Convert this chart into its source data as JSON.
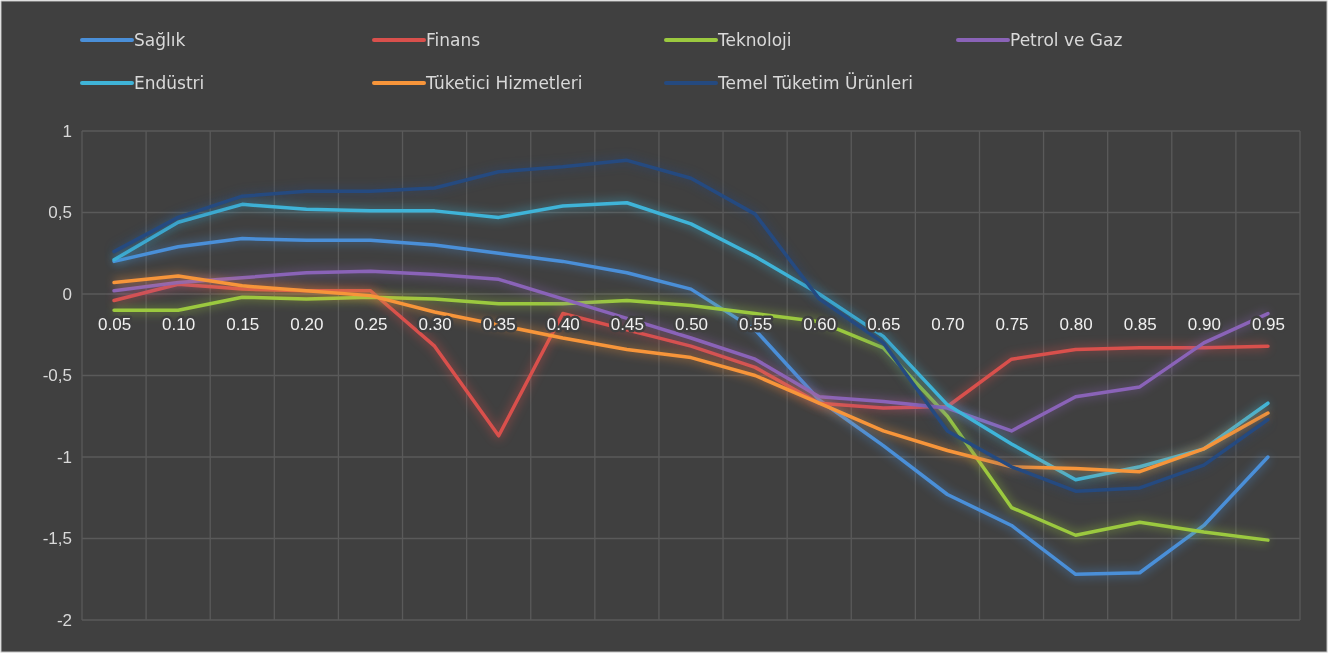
{
  "chart_data": {
    "type": "line",
    "categories": [
      "0.05",
      "0.10",
      "0.15",
      "0.20",
      "0.25",
      "0.30",
      "0.35",
      "0.40",
      "0.45",
      "0.50",
      "0.55",
      "0.60",
      "0.65",
      "0.70",
      "0.75",
      "0.80",
      "0.85",
      "0.90",
      "0.95"
    ],
    "series": [
      {
        "name": "Sağlık",
        "color": "#4a8fd8",
        "values": [
          0.2,
          0.29,
          0.34,
          0.33,
          0.33,
          0.3,
          0.25,
          0.2,
          0.13,
          0.03,
          -0.22,
          -0.65,
          -0.93,
          -1.23,
          -1.42,
          -1.72,
          -1.71,
          -1.42,
          -1.0
        ]
      },
      {
        "name": "Finans",
        "color": "#d9504c",
        "values": [
          -0.04,
          0.06,
          0.03,
          0.02,
          0.02,
          -0.32,
          -0.87,
          -0.12,
          -0.22,
          -0.32,
          -0.45,
          -0.67,
          -0.7,
          -0.69,
          -0.4,
          -0.34,
          -0.33,
          -0.33,
          -0.32
        ]
      },
      {
        "name": "Teknoloji",
        "color": "#9bc93f",
        "values": [
          -0.1,
          -0.1,
          -0.02,
          -0.03,
          -0.02,
          -0.03,
          -0.06,
          -0.06,
          -0.04,
          -0.07,
          -0.12,
          -0.17,
          -0.33,
          -0.75,
          -1.31,
          -1.48,
          -1.4,
          -1.46,
          -1.51
        ]
      },
      {
        "name": "Petrol ve Gaz",
        "color": "#8a63b8",
        "values": [
          0.02,
          0.07,
          0.1,
          0.13,
          0.14,
          0.12,
          0.09,
          -0.03,
          -0.15,
          -0.27,
          -0.4,
          -0.63,
          -0.66,
          -0.7,
          -0.84,
          -0.63,
          -0.57,
          -0.3,
          -0.12
        ]
      },
      {
        "name": "Endüstri",
        "color": "#3fb4d8",
        "values": [
          0.21,
          0.44,
          0.55,
          0.52,
          0.51,
          0.51,
          0.47,
          0.54,
          0.56,
          0.43,
          0.23,
          0.0,
          -0.26,
          -0.68,
          -0.92,
          -1.14,
          -1.06,
          -0.95,
          -0.67
        ]
      },
      {
        "name": "Tüketici Hizmetleri",
        "color": "#f7953a",
        "values": [
          0.07,
          0.11,
          0.05,
          0.02,
          -0.01,
          -0.11,
          -0.19,
          -0.27,
          -0.34,
          -0.39,
          -0.5,
          -0.67,
          -0.84,
          -0.96,
          -1.06,
          -1.07,
          -1.09,
          -0.95,
          -0.73
        ]
      },
      {
        "name": "Temel Tüketim Ürünleri",
        "color": "#254a80",
        "values": [
          0.26,
          0.47,
          0.6,
          0.63,
          0.63,
          0.65,
          0.75,
          0.78,
          0.82,
          0.71,
          0.49,
          -0.03,
          -0.3,
          -0.84,
          -1.06,
          -1.21,
          -1.19,
          -1.05,
          -0.77
        ]
      }
    ],
    "ylim": [
      -2,
      1
    ],
    "yticks": [
      1,
      {
        "value": 0.5,
        "label": "0,5"
      },
      0,
      {
        "value": -0.5,
        "label": "-0,5"
      },
      -1,
      {
        "value": -1.5,
        "label": "-1,5"
      },
      -2
    ],
    "grid": true,
    "legend": "top",
    "marker": "none",
    "line_style": "solid"
  }
}
